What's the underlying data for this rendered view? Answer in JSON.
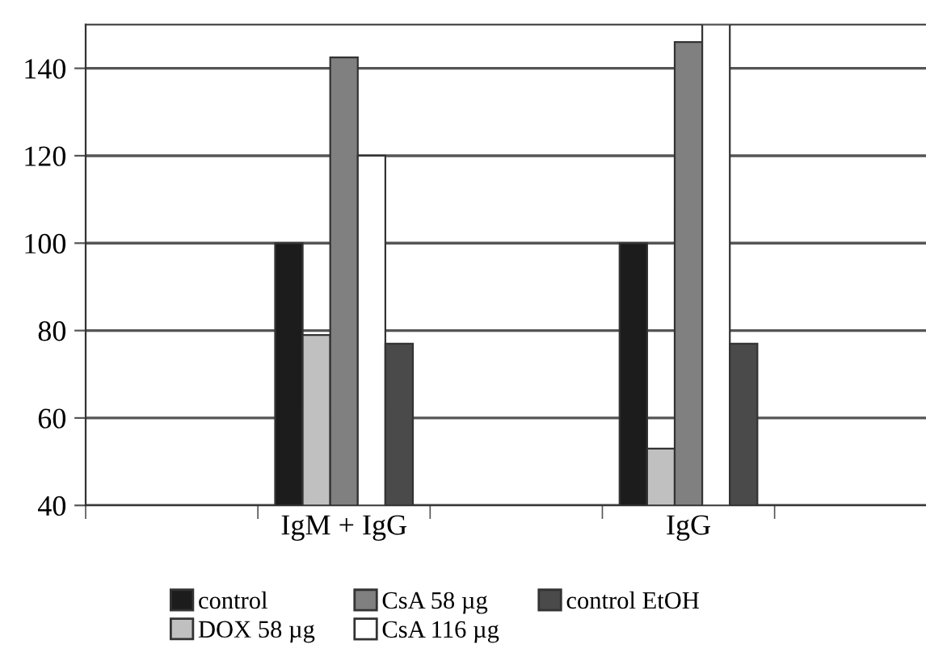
{
  "chart_data": {
    "type": "bar",
    "categories": [
      null,
      "IgM + IgG",
      null,
      "IgG",
      null
    ],
    "series": [
      {
        "name": "control",
        "color": "#1c1c1c",
        "values": [
          null,
          100,
          null,
          100,
          null
        ]
      },
      {
        "name": "DOX 58 µg",
        "color": "#c0c0c0",
        "values": [
          null,
          79,
          null,
          53,
          null
        ]
      },
      {
        "name": "CsA 58 µg",
        "color": "#808080",
        "values": [
          null,
          142.5,
          null,
          146,
          null
        ]
      },
      {
        "name": "CsA 116 µg",
        "color": "#ffffff",
        "values": [
          null,
          120,
          null,
          150,
          null
        ]
      },
      {
        "name": "control EtOH",
        "color": "#4a4a4a",
        "values": [
          null,
          77,
          null,
          77,
          null
        ]
      }
    ],
    "ylim": [
      40,
      150
    ],
    "yticks": [
      40,
      60,
      80,
      100,
      120,
      140
    ],
    "grid": "y",
    "legend": "bottom"
  }
}
